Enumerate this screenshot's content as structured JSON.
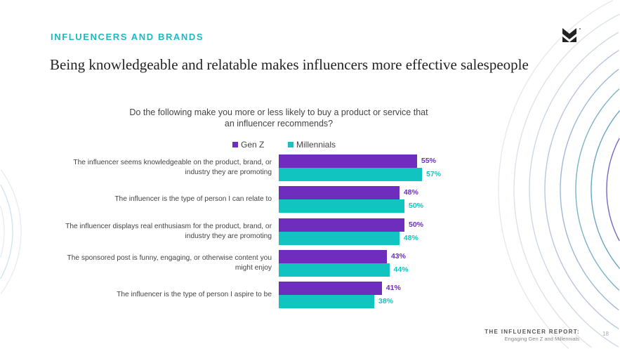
{
  "header": {
    "kicker": "INFLUENCERS AND BRANDS",
    "title": "Being knowledgeable and relatable makes influencers more effective salespeople"
  },
  "footer": {
    "report": "THE INFLUENCER REPORT:",
    "subtitle": "Engaging Gen Z and Millennials",
    "page": "18"
  },
  "colors": {
    "genz": "#6f2dbd",
    "millennials": "#12c4c0",
    "kicker": "#1fb8c3"
  },
  "chart_data": {
    "type": "bar",
    "orientation": "horizontal",
    "title": "Do the following make you more or less likely to buy a product or service that an influencer recommends?",
    "categories": [
      "The influencer seems knowledgeable on the product, brand, or industry they are promoting",
      "The influencer is the type of person I can relate to",
      "The influencer displays real enthusiasm for the product, brand, or industry they are promoting",
      "The sponsored post is funny, engaging, or otherwise content you might enjoy",
      "The influencer is the type of person I aspire to be"
    ],
    "series": [
      {
        "name": "Gen Z",
        "values": [
          55,
          48,
          50,
          43,
          41
        ],
        "labels": [
          "55%",
          "48%",
          "50%",
          "43%",
          "41%"
        ]
      },
      {
        "name": "Millennials",
        "values": [
          57,
          50,
          48,
          44,
          38
        ],
        "labels": [
          "57%",
          "50%",
          "48%",
          "44%",
          "38%"
        ]
      }
    ],
    "legend": "top",
    "grid": false
  }
}
